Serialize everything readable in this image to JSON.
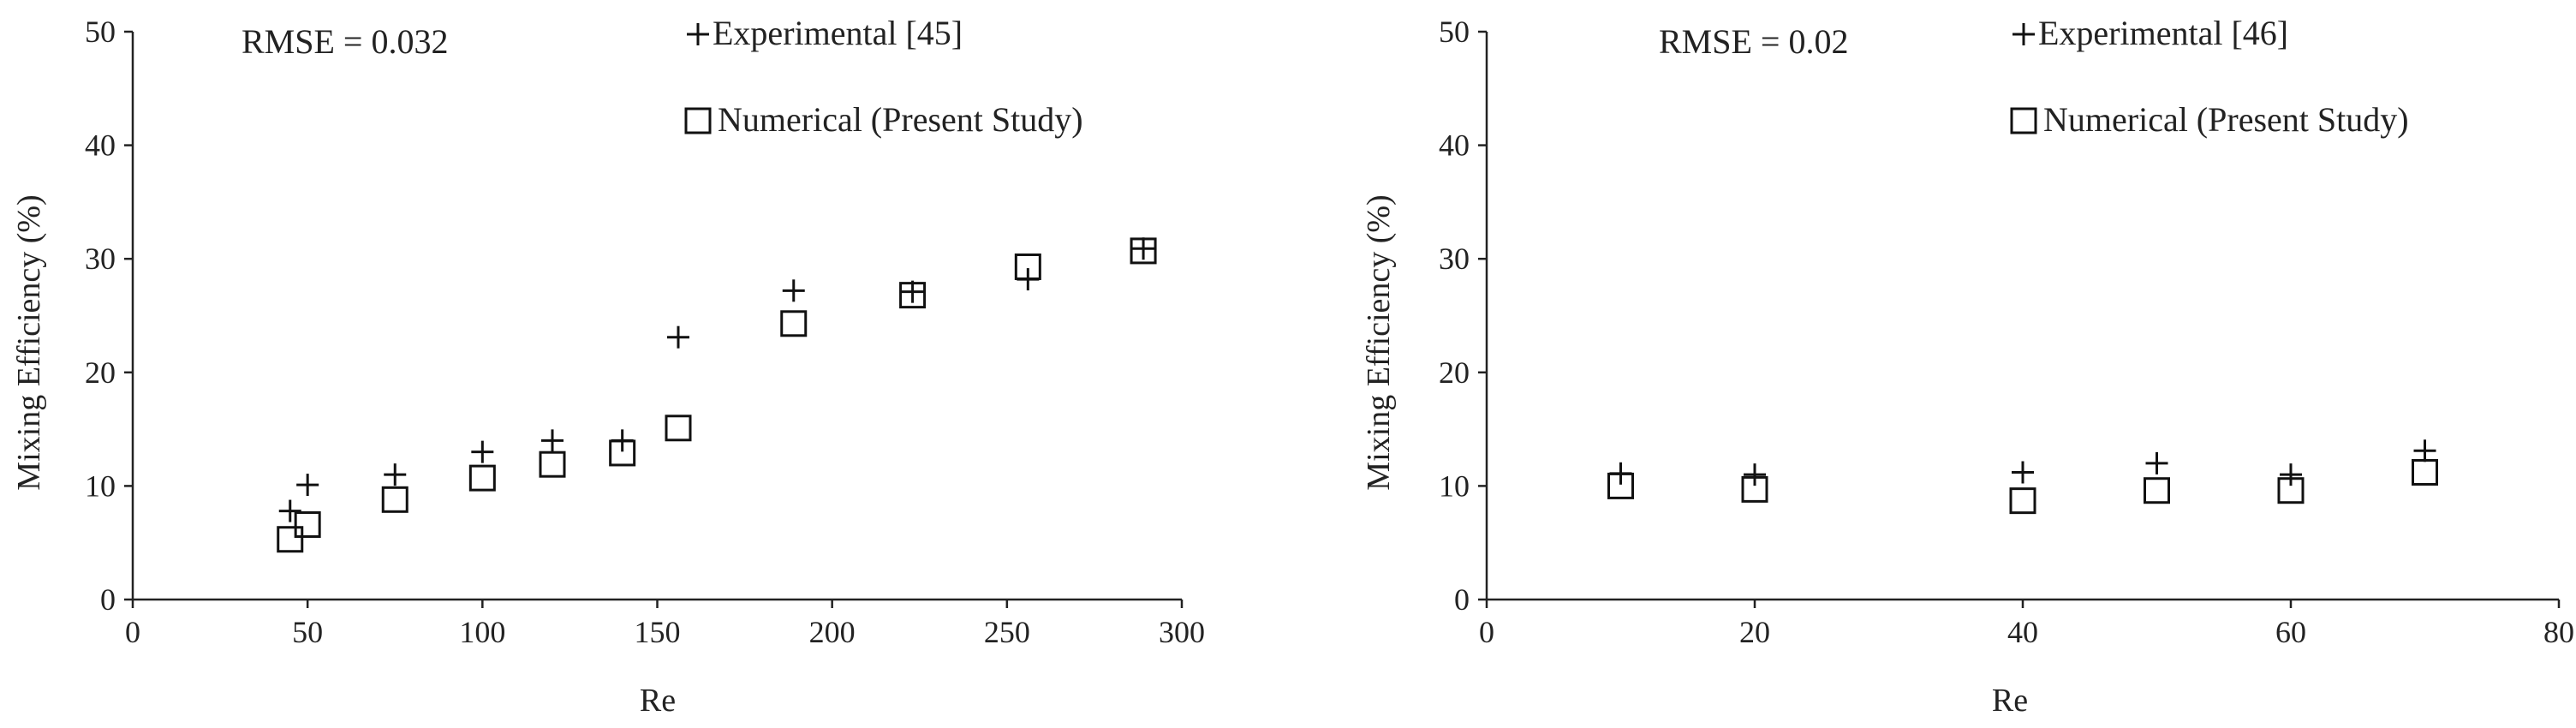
{
  "chart_data": [
    {
      "type": "scatter",
      "annotation": "RMSE = 0.032",
      "xlabel": "Re",
      "ylabel": "Mixing Efficiency (%)",
      "xlim": [
        0,
        300
      ],
      "ylim": [
        0,
        50
      ],
      "xticks": [
        0,
        50,
        100,
        150,
        200,
        250,
        300
      ],
      "yticks": [
        0,
        10,
        20,
        30,
        40,
        50
      ],
      "legend_position": "top",
      "series": [
        {
          "name": "Experimental [45]",
          "marker": "plus",
          "points": [
            {
              "x": 45,
              "y": 7.8
            },
            {
              "x": 50,
              "y": 10.1
            },
            {
              "x": 75,
              "y": 11
            },
            {
              "x": 100,
              "y": 13
            },
            {
              "x": 120,
              "y": 14
            },
            {
              "x": 140,
              "y": 14
            },
            {
              "x": 156,
              "y": 23.1
            },
            {
              "x": 189,
              "y": 27.2
            },
            {
              "x": 223,
              "y": 27.1
            },
            {
              "x": 256,
              "y": 28.2
            },
            {
              "x": 289,
              "y": 30.9
            }
          ]
        },
        {
          "name": "Numerical (Present Study)",
          "marker": "square",
          "points": [
            {
              "x": 45,
              "y": 5.3
            },
            {
              "x": 50,
              "y": 6.6
            },
            {
              "x": 75,
              "y": 8.8
            },
            {
              "x": 100,
              "y": 10.7
            },
            {
              "x": 120,
              "y": 11.9
            },
            {
              "x": 140,
              "y": 12.9
            },
            {
              "x": 156,
              "y": 15.1
            },
            {
              "x": 189,
              "y": 24.3
            },
            {
              "x": 223,
              "y": 26.8
            },
            {
              "x": 256,
              "y": 29.3
            },
            {
              "x": 289,
              "y": 30.7
            }
          ]
        }
      ]
    },
    {
      "type": "scatter",
      "annotation": "RMSE = 0.02",
      "xlabel": "Re",
      "ylabel": "Mixing Efficiency (%)",
      "xlim": [
        0,
        80
      ],
      "ylim": [
        0,
        50
      ],
      "xticks": [
        0,
        20,
        40,
        60,
        80
      ],
      "yticks": [
        0,
        10,
        20,
        30,
        40,
        50
      ],
      "legend_position": "top",
      "series": [
        {
          "name": "Experimental [46]",
          "marker": "plus",
          "points": [
            {
              "x": 10,
              "y": 11.1
            },
            {
              "x": 20,
              "y": 11
            },
            {
              "x": 40,
              "y": 11.2
            },
            {
              "x": 50,
              "y": 12
            },
            {
              "x": 60,
              "y": 11
            },
            {
              "x": 70,
              "y": 13.1
            }
          ]
        },
        {
          "name": "Numerical (Present Study)",
          "marker": "square",
          "points": [
            {
              "x": 10,
              "y": 10
            },
            {
              "x": 20,
              "y": 9.7
            },
            {
              "x": 40,
              "y": 8.7
            },
            {
              "x": 50,
              "y": 9.6
            },
            {
              "x": 60,
              "y": 9.6
            },
            {
              "x": 70,
              "y": 11.2
            }
          ]
        }
      ]
    }
  ]
}
